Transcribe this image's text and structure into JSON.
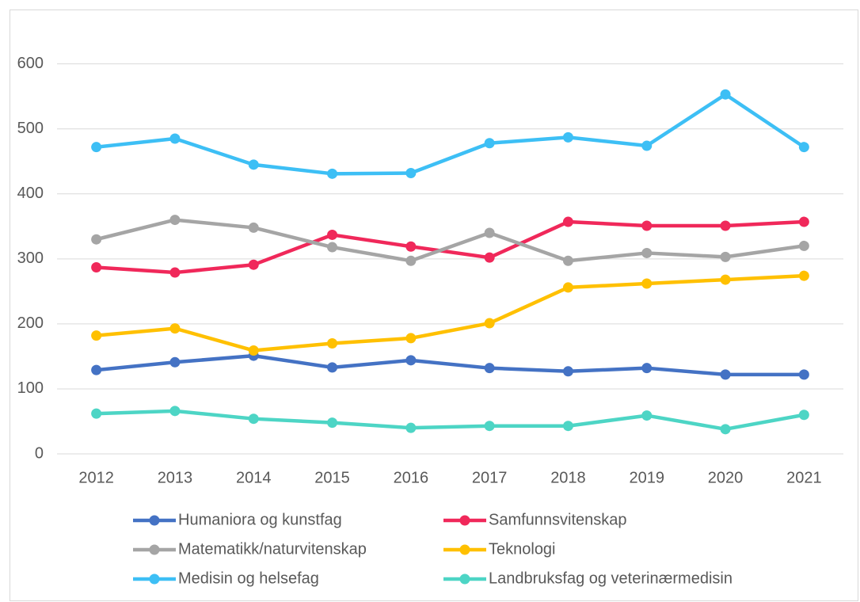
{
  "chart_data": {
    "type": "line",
    "categories": [
      "2012",
      "2013",
      "2014",
      "2015",
      "2016",
      "2017",
      "2018",
      "2019",
      "2020",
      "2021"
    ],
    "series": [
      {
        "name": "Humaniora og kunstfag",
        "color": "#4472c4",
        "values": [
          129,
          141,
          151,
          133,
          144,
          132,
          127,
          132,
          122,
          122
        ]
      },
      {
        "name": "Samfunnsvitenskap",
        "color": "#f0285a",
        "values": [
          287,
          279,
          291,
          337,
          319,
          302,
          357,
          351,
          351,
          357
        ]
      },
      {
        "name": "Matematikk/naturvitenskap",
        "color": "#a5a5a5",
        "values": [
          330,
          360,
          348,
          318,
          297,
          340,
          297,
          309,
          303,
          320
        ]
      },
      {
        "name": "Teknologi",
        "color": "#ffc000",
        "values": [
          182,
          193,
          159,
          170,
          178,
          201,
          256,
          262,
          268,
          274
        ]
      },
      {
        "name": "Medisin og helsefag",
        "color": "#3dbff5",
        "values": [
          472,
          485,
          445,
          431,
          432,
          478,
          487,
          474,
          553,
          472
        ]
      },
      {
        "name": "Landbruksfag og veterinærmedisin",
        "color": "#4dd5c5",
        "values": [
          62,
          66,
          54,
          48,
          40,
          43,
          43,
          59,
          38,
          60
        ]
      }
    ],
    "ylim": [
      0,
      680
    ],
    "yticks": [
      0,
      100,
      200,
      300,
      400,
      500,
      600
    ],
    "grid": true,
    "legend": "bottom"
  }
}
